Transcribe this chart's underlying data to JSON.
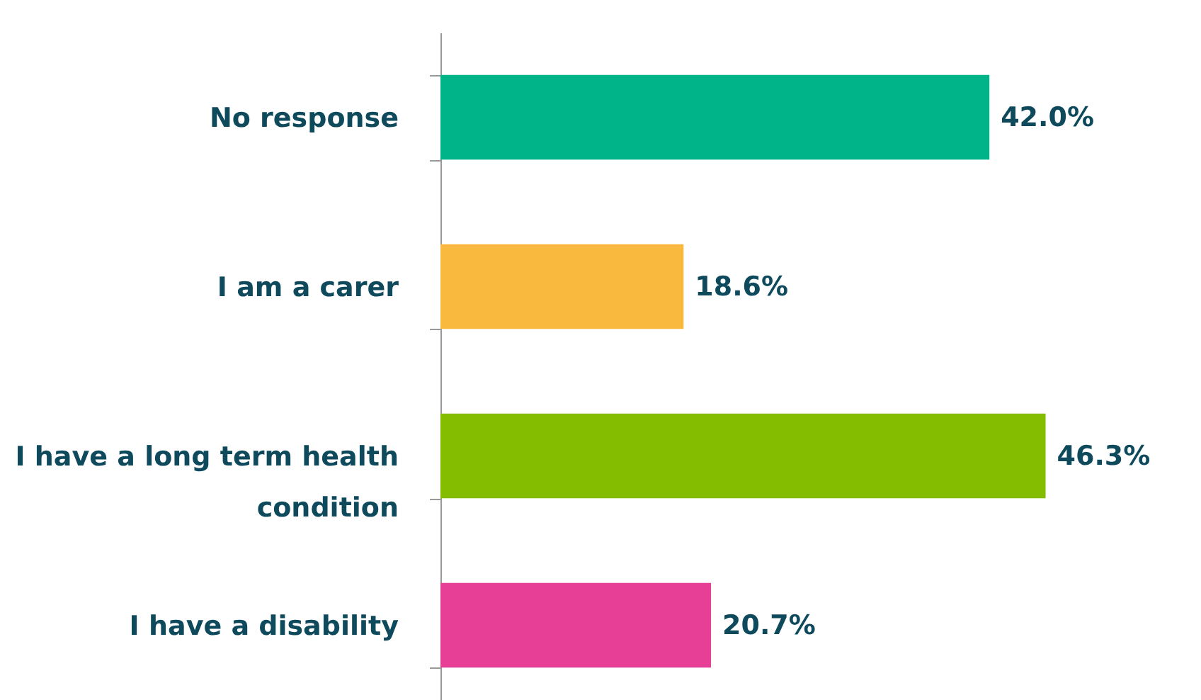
{
  "chart_data": {
    "type": "bar",
    "orientation": "horizontal",
    "categories": [
      "No response",
      "I am a carer",
      "I have a long term health condition",
      "I have a disability"
    ],
    "values": [
      42.0,
      18.6,
      46.3,
      20.7
    ],
    "colors": [
      "#00b48a",
      "#f9b93f",
      "#84bd00",
      "#e83f96"
    ],
    "data_labels": true,
    "value_labels": [
      "42.0%",
      "18.6%",
      "46.3%",
      "20.7%"
    ],
    "grid": false
  }
}
